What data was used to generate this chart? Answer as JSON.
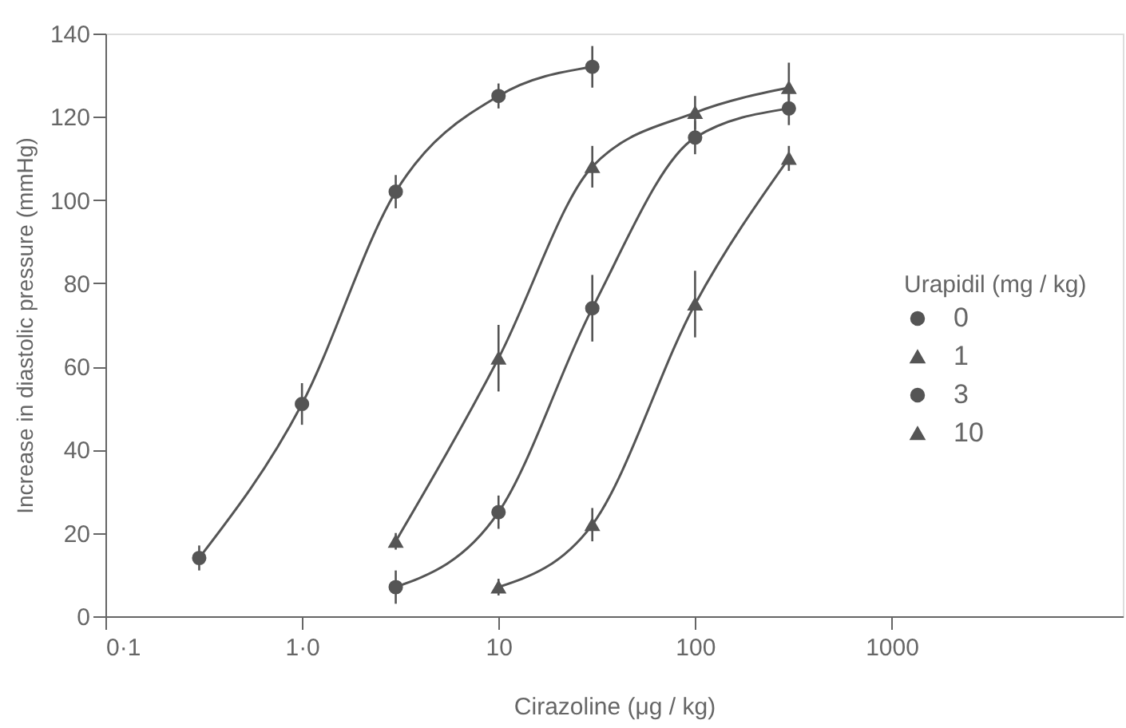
{
  "chart_data": {
    "type": "line",
    "xlabel": "Cirazoline (μg / kg)",
    "ylabel": "Increase in diastolic pressure (mmHg)",
    "legend_title": "Urapidil (mg / kg)",
    "legend": "right",
    "log": "x",
    "grid": false,
    "line_style": "solid",
    "xlim": [
      0.1,
      15000
    ],
    "xticks": [
      {
        "value": 0.1,
        "label": "0·1"
      },
      {
        "value": 1,
        "label": "1·0"
      },
      10,
      100,
      1000
    ],
    "ylim": [
      0,
      140
    ],
    "yticks": [
      0,
      20,
      40,
      60,
      80,
      100,
      120,
      140
    ],
    "series": [
      {
        "name": "0",
        "color": "#555555",
        "marker": "circle",
        "x": [
          0.3,
          1,
          3,
          10,
          30
        ],
        "values": [
          14,
          51,
          102,
          125,
          132
        ],
        "errors": [
          3,
          5,
          4,
          3,
          5
        ]
      },
      {
        "name": "1",
        "color": "#555555",
        "marker": "triangle",
        "x": [
          3,
          10,
          30,
          100,
          300
        ],
        "values": [
          18,
          62,
          108,
          121,
          127
        ],
        "errors": [
          2,
          8,
          5,
          4,
          6
        ]
      },
      {
        "name": "3",
        "color": "#555555",
        "marker": "circle",
        "x": [
          3,
          10,
          30,
          100,
          300
        ],
        "values": [
          7,
          25,
          74,
          115,
          122
        ],
        "errors": [
          4,
          4,
          8,
          4,
          4
        ]
      },
      {
        "name": "10",
        "color": "#555555",
        "marker": "triangle",
        "x": [
          10,
          30,
          100,
          300
        ],
        "values": [
          7,
          22,
          75,
          110
        ],
        "errors": [
          2,
          4,
          8,
          3
        ]
      }
    ]
  }
}
